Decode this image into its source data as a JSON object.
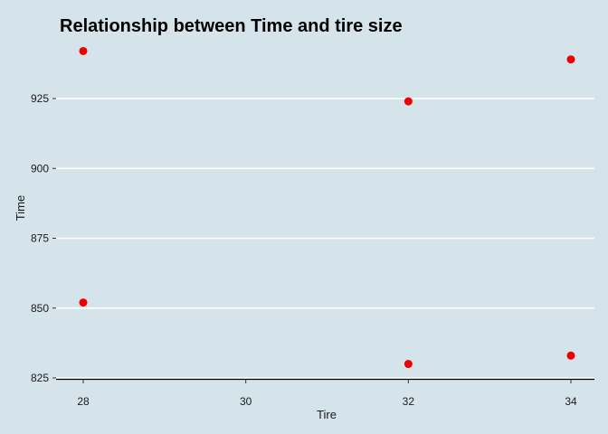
{
  "chart_data": {
    "type": "scatter",
    "title": "Relationship between Time and tire size",
    "xlabel": "Tire",
    "ylabel": "Time",
    "x_ticks": [
      28,
      30,
      32,
      34
    ],
    "y_ticks": [
      825,
      850,
      875,
      900,
      925
    ],
    "xlim": [
      27.7,
      34.3
    ],
    "ylim": [
      825,
      945
    ],
    "grid": "horizontal major lines",
    "points": [
      {
        "x": 28,
        "y": 942
      },
      {
        "x": 28,
        "y": 852
      },
      {
        "x": 32,
        "y": 924
      },
      {
        "x": 32,
        "y": 830
      },
      {
        "x": 34,
        "y": 939
      },
      {
        "x": 34,
        "y": 833
      }
    ]
  },
  "colors": {
    "background": "#d5e3ea",
    "point": "#ee0000",
    "gridline": "#ffffff",
    "axis_line": "#000000"
  }
}
